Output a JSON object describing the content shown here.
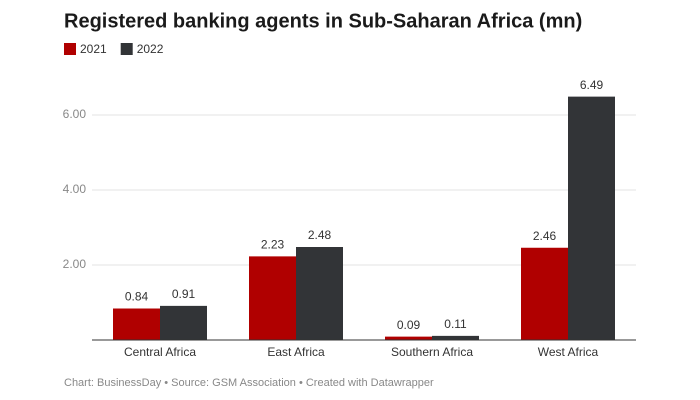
{
  "chart_data": {
    "type": "bar",
    "title": "Registered banking agents in Sub-Saharan Africa (mn)",
    "categories": [
      "Central Africa",
      "East Africa",
      "Southern Africa",
      "West Africa"
    ],
    "series": [
      {
        "name": "2021",
        "color": "#b00000",
        "values": [
          0.84,
          2.23,
          0.09,
          2.46
        ]
      },
      {
        "name": "2022",
        "color": "#323437",
        "values": [
          0.91,
          2.48,
          0.11,
          6.49
        ]
      }
    ],
    "ylim": [
      0,
      7
    ],
    "yticks": [
      {
        "value": 2,
        "label": "2.00"
      },
      {
        "value": 4,
        "label": "4.00"
      },
      {
        "value": 6,
        "label": "6.00"
      }
    ],
    "grid": true,
    "footer": "Chart: BusinessDay • Source: GSM Association • Created with Datawrapper"
  }
}
